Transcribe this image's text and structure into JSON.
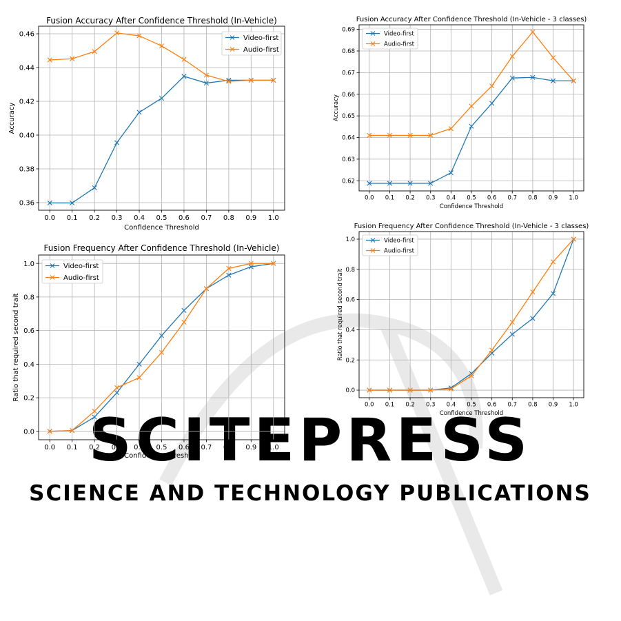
{
  "watermark": {
    "line1": "SCITEPRESS",
    "line2": "SCIENCE AND TECHNOLOGY PUBLICATIONS",
    "color": "#e9e9e9"
  },
  "colors": {
    "video": "#1f77b4",
    "audio": "#ff7f0e",
    "grid": "#b0b0b0"
  },
  "chart_data": [
    {
      "type": "line",
      "title": "Fusion Accuracy After Confidence Threshold (In-Vehicle)",
      "xlabel": "Confidence Threshold",
      "ylabel": "Accuracy",
      "x": [
        0.0,
        0.1,
        0.2,
        0.3,
        0.4,
        0.5,
        0.6,
        0.7,
        0.8,
        0.9,
        1.0
      ],
      "xticks": [
        "0.0",
        "0.1",
        "0.2",
        "0.3",
        "0.4",
        "0.5",
        "0.6",
        "0.7",
        "0.8",
        "0.9",
        "1.0"
      ],
      "xlim": [
        -0.05,
        1.05
      ],
      "ylim": [
        0.3555,
        0.4645
      ],
      "yticks": [
        "0.36",
        "0.38",
        "0.40",
        "0.42",
        "0.44",
        "0.46"
      ],
      "grid": true,
      "legend": "upper right",
      "series": [
        {
          "name": "Video-first",
          "marker": "x",
          "values": [
            0.3598,
            0.3598,
            0.3688,
            0.3955,
            0.4135,
            0.4218,
            0.4348,
            0.4308,
            0.4325,
            0.4325,
            0.4325
          ]
        },
        {
          "name": "Audio-first",
          "marker": "x",
          "values": [
            0.4445,
            0.4452,
            0.4495,
            0.4605,
            0.4588,
            0.4528,
            0.4448,
            0.4355,
            0.4318,
            0.4325,
            0.4325
          ]
        }
      ]
    },
    {
      "type": "line",
      "title": "Fusion Accuracy After Confidence Threshold (In-Vehicle - 3 classes)",
      "xlabel": "Confidence Threshold",
      "ylabel": "Accuracy",
      "x": [
        0.0,
        0.1,
        0.2,
        0.3,
        0.4,
        0.5,
        0.6,
        0.7,
        0.8,
        0.9,
        1.0
      ],
      "xticks": [
        "0.0",
        "0.1",
        "0.2",
        "0.3",
        "0.4",
        "0.5",
        "0.6",
        "0.7",
        "0.8",
        "0.9",
        "1.0"
      ],
      "xlim": [
        -0.05,
        1.05
      ],
      "ylim": [
        0.6153,
        0.6921
      ],
      "yticks": [
        "0.62",
        "0.63",
        "0.64",
        "0.65",
        "0.66",
        "0.67",
        "0.68",
        "0.69"
      ],
      "grid": true,
      "legend": "upper left",
      "series": [
        {
          "name": "Video-first",
          "marker": "x",
          "values": [
            0.6188,
            0.6188,
            0.6188,
            0.6188,
            0.6237,
            0.6452,
            0.6558,
            0.6675,
            0.6678,
            0.6662,
            0.6662
          ]
        },
        {
          "name": "Audio-first",
          "marker": "x",
          "values": [
            0.641,
            0.641,
            0.641,
            0.641,
            0.6441,
            0.6545,
            0.6638,
            0.6775,
            0.6888,
            0.6769,
            0.6662
          ]
        }
      ]
    },
    {
      "type": "line",
      "title": "Fusion Frequency After Confidence Threshold (In-Vehicle)",
      "xlabel": "Confidence Threshold",
      "ylabel": "Ratio that required second trait",
      "x": [
        0.0,
        0.1,
        0.2,
        0.3,
        0.4,
        0.5,
        0.6,
        0.7,
        0.8,
        0.9,
        1.0
      ],
      "xticks": [
        "0.0",
        "0.1",
        "0.2",
        "0.3",
        "0.4",
        "0.5",
        "0.6",
        "0.7",
        "0.8",
        "0.9",
        "1.0"
      ],
      "xlim": [
        -0.05,
        1.05
      ],
      "ylim": [
        -0.05,
        1.05
      ],
      "yticks": [
        "0.0",
        "0.2",
        "0.4",
        "0.6",
        "0.8",
        "1.0"
      ],
      "grid": true,
      "legend": "upper left",
      "series": [
        {
          "name": "Video-first",
          "marker": "x",
          "values": [
            0.0,
            0.005,
            0.085,
            0.23,
            0.4,
            0.57,
            0.72,
            0.85,
            0.93,
            0.98,
            1.0
          ]
        },
        {
          "name": "Audio-first",
          "marker": "x",
          "values": [
            0.0,
            0.005,
            0.12,
            0.26,
            0.32,
            0.47,
            0.65,
            0.85,
            0.97,
            1.0,
            1.0
          ]
        }
      ]
    },
    {
      "type": "line",
      "title": "Fusion Frequency After Confidence Threshold (In-Vehicle - 3 classes)",
      "xlabel": "Confidence Threshold",
      "ylabel": "Ratio that required second trait",
      "x": [
        0.0,
        0.1,
        0.2,
        0.3,
        0.4,
        0.5,
        0.6,
        0.7,
        0.8,
        0.9,
        1.0
      ],
      "xticks": [
        "0.0",
        "0.1",
        "0.2",
        "0.3",
        "0.4",
        "0.5",
        "0.6",
        "0.7",
        "0.8",
        "0.9",
        "1.0"
      ],
      "xlim": [
        -0.05,
        1.05
      ],
      "ylim": [
        -0.05,
        1.05
      ],
      "yticks": [
        "0.0",
        "0.2",
        "0.4",
        "0.6",
        "0.8",
        "1.0"
      ],
      "grid": true,
      "legend": "upper left",
      "series": [
        {
          "name": "Video-first",
          "marker": "x",
          "values": [
            0.0,
            0.0,
            0.0,
            0.0,
            0.015,
            0.11,
            0.245,
            0.37,
            0.475,
            0.64,
            1.0
          ]
        },
        {
          "name": "Audio-first",
          "marker": "x",
          "values": [
            0.0,
            0.0,
            0.0,
            0.0,
            0.008,
            0.095,
            0.265,
            0.45,
            0.65,
            0.85,
            1.0
          ]
        }
      ]
    }
  ]
}
